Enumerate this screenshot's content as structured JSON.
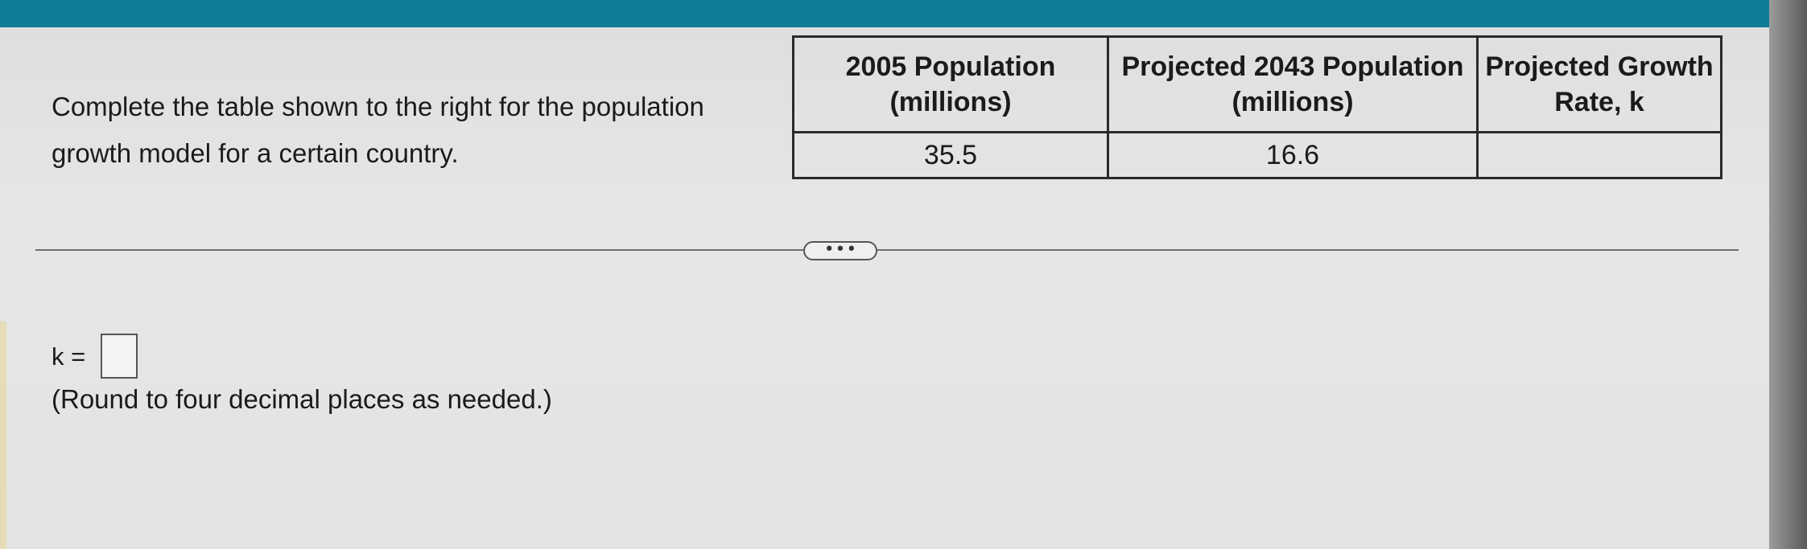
{
  "question": {
    "prompt": "Complete the table shown to the right for the population growth model for a certain country.",
    "more_button_label": "• • •",
    "answer_label": "k =",
    "answer_value": "",
    "hint": "(Round to four decimal places as needed.)"
  },
  "table": {
    "headers": [
      "2005 Population (millions)",
      "Projected 2043 Population (millions)",
      "Projected Growth Rate, k"
    ],
    "rows": [
      [
        "35.5",
        "16.6",
        ""
      ]
    ]
  },
  "colors": {
    "top_bar": "#0f7c98",
    "background": "#e5e6e4"
  }
}
